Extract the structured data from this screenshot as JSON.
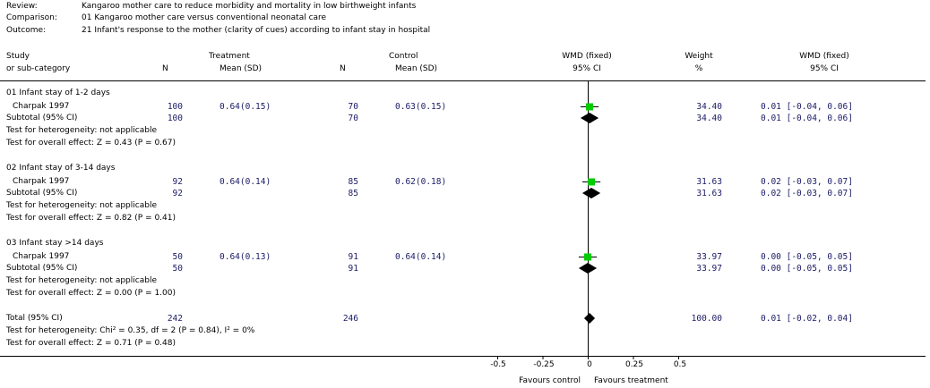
{
  "header": {
    "review_label": "Review:",
    "review_value": "Kangaroo mother care to reduce morbidity and mortality in low birthweight infants",
    "comparison_label": "Comparison:",
    "comparison_value": "01 Kangaroo mother care versus conventional neonatal care",
    "outcome_label": "Outcome:",
    "outcome_value": "21 Infant's response to the mother (clarity of cues) according to infant stay in hospital"
  },
  "columns": {
    "study_line1": "Study",
    "study_line2": "or sub-category",
    "treatment": "Treatment",
    "n_treat": "N",
    "mean_treat": "Mean (SD)",
    "control": "Control",
    "n_ctrl": "N",
    "mean_ctrl": "Mean (SD)",
    "effect_line1": "WMD (fixed)",
    "effect_line2": "95% CI",
    "weight_line1": "Weight",
    "weight_line2": "%",
    "ci_line1": "WMD (fixed)",
    "ci_line2": "95% CI"
  },
  "groups": [
    {
      "title": "01 Infant stay of 1-2 days",
      "study": {
        "name": "Charpak 1997",
        "n_t": "100",
        "mean_t": "0.64(0.15)",
        "n_c": "70",
        "mean_c": "0.63(0.15)",
        "weight": "34.40",
        "ci": "0.01 [-0.04, 0.06]"
      },
      "subtotal": {
        "label": "Subtotal (95% CI)",
        "n_t": "100",
        "n_c": "70",
        "weight": "34.40",
        "ci": "0.01 [-0.04, 0.06]"
      },
      "het": "Test for heterogeneity: not applicable",
      "overall": "Test for overall effect: Z = 0.43 (P = 0.67)"
    },
    {
      "title": "02 Infant stay of 3-14 days",
      "study": {
        "name": "Charpak 1997",
        "n_t": "92",
        "mean_t": "0.64(0.14)",
        "n_c": "85",
        "mean_c": "0.62(0.18)",
        "weight": "31.63",
        "ci": "0.02 [-0.03, 0.07]"
      },
      "subtotal": {
        "label": "Subtotal (95% CI)",
        "n_t": "92",
        "n_c": "85",
        "weight": "31.63",
        "ci": "0.02 [-0.03, 0.07]"
      },
      "het": "Test for heterogeneity: not applicable",
      "overall": "Test for overall effect: Z = 0.82 (P = 0.41)"
    },
    {
      "title": "03 Infant stay >14 days",
      "study": {
        "name": "Charpak 1997",
        "n_t": "50",
        "mean_t": "0.64(0.13)",
        "n_c": "91",
        "mean_c": "0.64(0.14)",
        "weight": "33.97",
        "ci": "0.00 [-0.05, 0.05]"
      },
      "subtotal": {
        "label": "Subtotal (95% CI)",
        "n_t": "50",
        "n_c": "91",
        "weight": "33.97",
        "ci": "0.00 [-0.05, 0.05]"
      },
      "het": "Test for heterogeneity: not applicable",
      "overall": "Test for overall effect: Z = 0.00 (P = 1.00)"
    }
  ],
  "total": {
    "label": "Total (95% CI)",
    "n_t": "242",
    "n_c": "246",
    "weight": "100.00",
    "ci": "0.01 [-0.02, 0.04]",
    "het": "Test for heterogeneity: Chi² = 0.35, df = 2 (P = 0.84), I² = 0%",
    "overall": "Test for overall effect: Z = 0.71 (P = 0.48)"
  },
  "axis": {
    "ticks": [
      "-0.5",
      "-0.25",
      "0",
      "0.25",
      "0.5"
    ],
    "favours_left": "Favours control",
    "favours_right": "Favours treatment"
  },
  "colors": {
    "study_marker": "#00cc00",
    "pooled_diamond": "#000000",
    "numeric_text": "#1a1a66"
  },
  "chart_data": {
    "type": "forest",
    "xlim": [
      -0.5,
      0.5
    ],
    "x_ticks": [
      -0.5,
      -0.25,
      0,
      0.25,
      0.5
    ],
    "studies": [
      {
        "group": "01 Infant stay of 1-2 days",
        "name": "Charpak 1997",
        "estimate": 0.01,
        "lower": -0.04,
        "upper": 0.06,
        "weight": 34.4
      },
      {
        "group": "02 Infant stay of 3-14 days",
        "name": "Charpak 1997",
        "estimate": 0.02,
        "lower": -0.03,
        "upper": 0.07,
        "weight": 31.63
      },
      {
        "group": "03 Infant stay >14 days",
        "name": "Charpak 1997",
        "estimate": 0.0,
        "lower": -0.05,
        "upper": 0.05,
        "weight": 33.97
      }
    ],
    "subtotals": [
      {
        "group": "01 Infant stay of 1-2 days",
        "estimate": 0.01,
        "lower": -0.04,
        "upper": 0.06
      },
      {
        "group": "02 Infant stay of 3-14 days",
        "estimate": 0.02,
        "lower": -0.03,
        "upper": 0.07
      },
      {
        "group": "03 Infant stay >14 days",
        "estimate": 0.0,
        "lower": -0.05,
        "upper": 0.05
      }
    ],
    "total": {
      "estimate": 0.01,
      "lower": -0.02,
      "upper": 0.04
    }
  }
}
